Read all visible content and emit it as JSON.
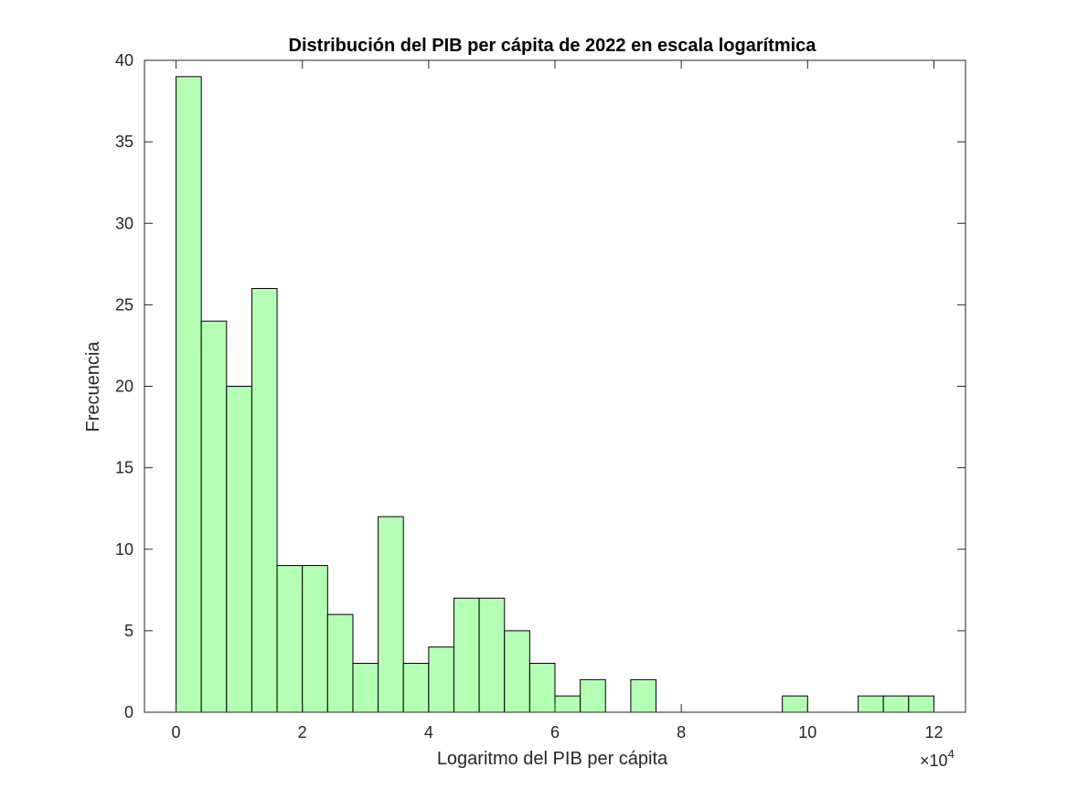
{
  "figure": {
    "background": "#ffffff"
  },
  "chart_data": {
    "type": "bar",
    "title": "Distribución del PIB per cápita de 2022 en escala logarítmica",
    "xlabel": "Logaritmo del PIB per cápita",
    "ylabel": "Frecuencia",
    "x_exponent_base": "×10",
    "x_exponent_power": "4",
    "xlim": [
      -0.5,
      12.5
    ],
    "ylim": [
      0,
      40
    ],
    "x_scale_factor": 10000,
    "xticks": [
      0,
      2,
      4,
      6,
      8,
      10,
      12
    ],
    "xtick_labels": [
      "0",
      "2",
      "4",
      "6",
      "8",
      "10",
      "12"
    ],
    "yticks": [
      0,
      5,
      10,
      15,
      20,
      25,
      30,
      35,
      40
    ],
    "ytick_labels": [
      "0",
      "5",
      "10",
      "15",
      "20",
      "25",
      "30",
      "35",
      "40"
    ],
    "bin_edges": [
      0,
      0.4,
      0.8,
      1.2,
      1.6,
      2.0,
      2.4,
      2.8,
      3.2,
      3.6,
      4.0,
      4.4,
      4.8,
      5.2,
      5.6,
      6.0,
      6.4,
      6.8,
      7.2,
      7.6,
      8.0,
      8.4,
      8.8,
      9.2,
      9.6,
      10.0,
      10.4,
      10.8,
      11.2,
      11.6,
      12.0
    ],
    "values": [
      39,
      24,
      20,
      26,
      9,
      9,
      6,
      3,
      12,
      3,
      4,
      7,
      7,
      5,
      3,
      1,
      2,
      0,
      2,
      0,
      0,
      0,
      0,
      0,
      1,
      0,
      0,
      1,
      1,
      1
    ],
    "bar_color": "#b3ffb3",
    "edge_color": "#000000",
    "grid": false,
    "box": true
  }
}
